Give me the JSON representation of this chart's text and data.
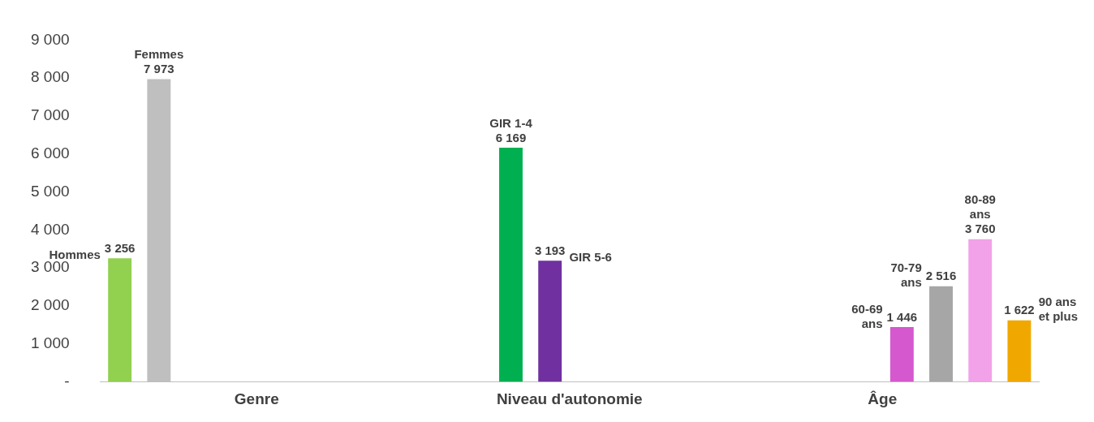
{
  "chart_data": {
    "type": "bar",
    "categories": [
      "Genre",
      "Niveau d'autonomie",
      "Âge"
    ],
    "series": [
      {
        "name": "Hommes",
        "color": "#92d050",
        "values": [
          3256,
          null,
          null
        ],
        "value_labels": [
          "3 256",
          null,
          null
        ]
      },
      {
        "name": "Femmes",
        "color": "#bfbfbf",
        "values": [
          7973,
          null,
          null
        ],
        "value_labels": [
          "7 973",
          null,
          null
        ]
      },
      {
        "name": "GIR 1-4",
        "color": "#00b050",
        "values": [
          null,
          6169,
          null
        ],
        "value_labels": [
          null,
          "6 169",
          null
        ]
      },
      {
        "name": "GIR 5-6",
        "color": "#7030a0",
        "values": [
          null,
          3193,
          null
        ],
        "value_labels": [
          null,
          "3 193",
          null
        ]
      },
      {
        "name": "60-69 ans",
        "color": "#d558cf",
        "values": [
          null,
          null,
          1446
        ],
        "value_labels": [
          null,
          null,
          "1 446"
        ]
      },
      {
        "name": "70-79 ans",
        "color": "#a6a6a6",
        "values": [
          null,
          null,
          2516
        ],
        "value_labels": [
          null,
          null,
          "2 516"
        ]
      },
      {
        "name": "80-89 ans",
        "color": "#f2a2e8",
        "values": [
          null,
          null,
          3760
        ],
        "value_labels": [
          null,
          null,
          "3 760"
        ]
      },
      {
        "name": "90 ans et plus",
        "color": "#f0a800",
        "values": [
          null,
          null,
          1622
        ],
        "value_labels": [
          null,
          null,
          "1 622"
        ]
      }
    ],
    "ylim": [
      0,
      9000
    ],
    "yticks": [
      {
        "value": 0,
        "label": "-"
      },
      {
        "value": 1000,
        "label": "1 000"
      },
      {
        "value": 2000,
        "label": "2 000"
      },
      {
        "value": 3000,
        "label": "3 000"
      },
      {
        "value": 4000,
        "label": "4 000"
      },
      {
        "value": 5000,
        "label": "5 000"
      },
      {
        "value": 6000,
        "label": "6 000"
      },
      {
        "value": 7000,
        "label": "7 000"
      },
      {
        "value": 8000,
        "label": "8 000"
      },
      {
        "value": 9000,
        "label": "9 000"
      }
    ],
    "grid": false,
    "legend": false
  }
}
